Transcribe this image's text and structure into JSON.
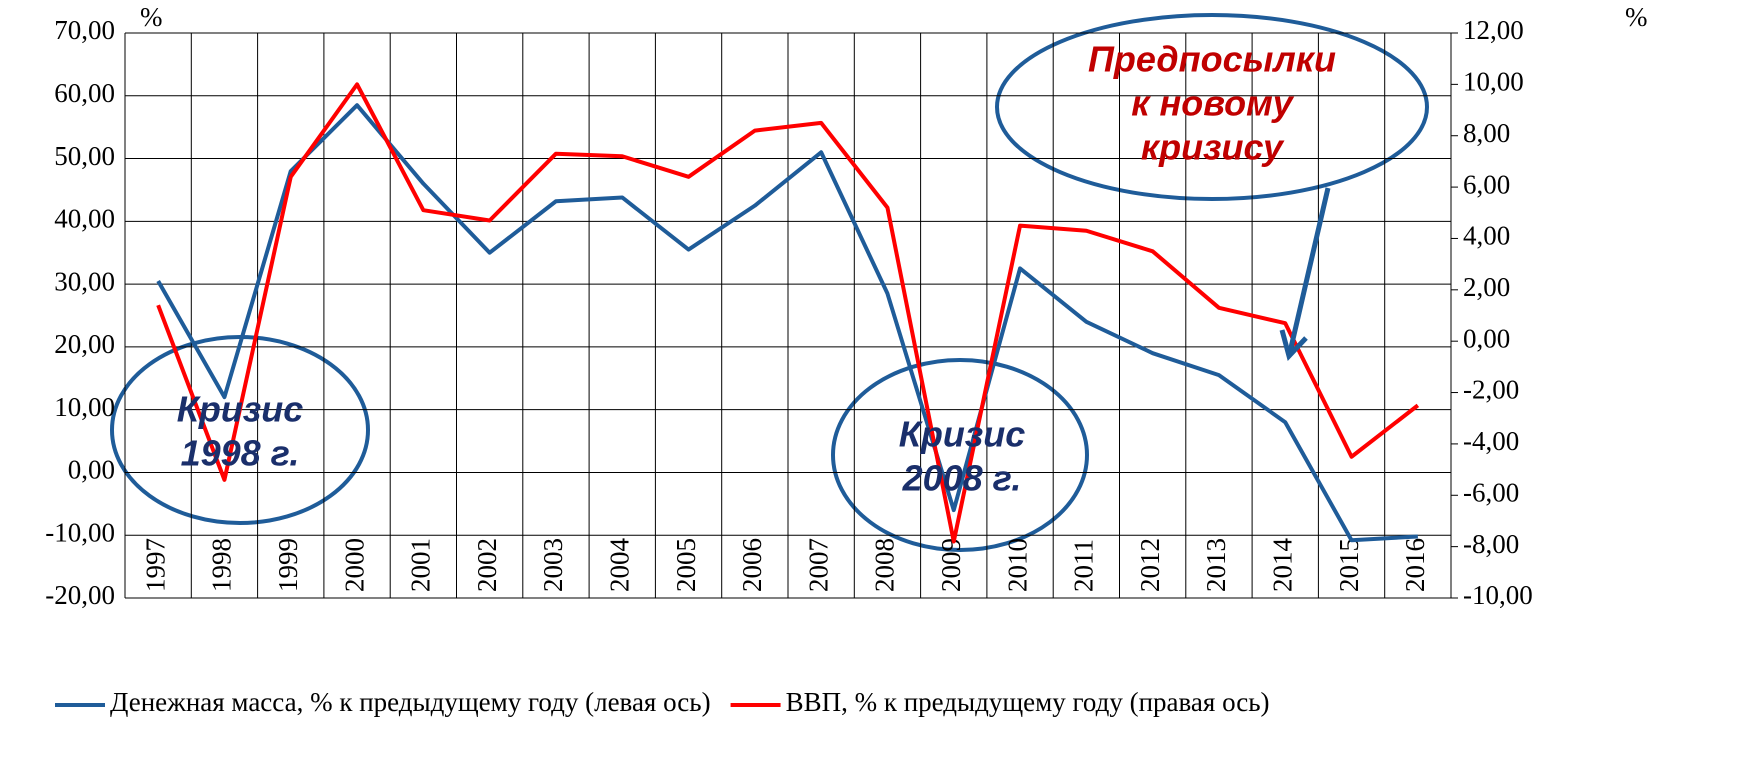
{
  "chart_data": {
    "type": "line",
    "categories": [
      "1997",
      "1998",
      "1999",
      "2000",
      "2001",
      "2002",
      "2003",
      "2004",
      "2005",
      "2006",
      "2007",
      "2008",
      "2009",
      "2010",
      "2011",
      "2012",
      "2013",
      "2014",
      "2015",
      "2016"
    ],
    "series": [
      {
        "name": "Денежная масса, % к предыдущему году (левая ось)",
        "color": "#1f5c99",
        "axis": "y",
        "values": [
          30.5,
          12,
          48,
          58.5,
          46,
          35,
          43.2,
          43.8,
          35.5,
          42.5,
          51,
          28.5,
          -6,
          32.5,
          24,
          19,
          15.5,
          8,
          -10.8,
          -10.2
        ]
      },
      {
        "name": "ВВП, % к предыдущему году (правая ось)",
        "color": "#ff0000",
        "axis": "y2",
        "values": [
          1.4,
          -5.4,
          6.4,
          10.0,
          5.1,
          4.7,
          7.3,
          7.2,
          6.4,
          8.2,
          8.5,
          5.2,
          -7.8,
          4.5,
          4.3,
          3.5,
          1.3,
          0.7,
          -4.5,
          -2.5
        ]
      }
    ],
    "y_unit": "%",
    "y2_unit": "%",
    "ylim": [
      -20,
      70
    ],
    "yticks": [
      {
        "value": -20,
        "label": "-20,00"
      },
      {
        "value": -10,
        "label": "-10,00"
      },
      {
        "value": 0,
        "label": "0,00"
      },
      {
        "value": 10,
        "label": "10,00"
      },
      {
        "value": 20,
        "label": "20,00"
      },
      {
        "value": 30,
        "label": "30,00"
      },
      {
        "value": 40,
        "label": "40,00"
      },
      {
        "value": 50,
        "label": "50,00"
      },
      {
        "value": 60,
        "label": "60,00"
      },
      {
        "value": 70,
        "label": "70,00"
      }
    ],
    "y2lim": [
      -10,
      12
    ],
    "y2ticks": [
      {
        "value": -10,
        "label": "-10,00"
      },
      {
        "value": -8,
        "label": "-8,00"
      },
      {
        "value": -6,
        "label": "-6,00"
      },
      {
        "value": -4,
        "label": "-4,00"
      },
      {
        "value": -2,
        "label": "-2,00"
      },
      {
        "value": 0,
        "label": "0,00"
      },
      {
        "value": 2,
        "label": "2,00"
      },
      {
        "value": 4,
        "label": "4,00"
      },
      {
        "value": 6,
        "label": "6,00"
      },
      {
        "value": 8,
        "label": "8,00"
      },
      {
        "value": 10,
        "label": "10,00"
      },
      {
        "value": 12,
        "label": "12,00"
      }
    ],
    "grid": true,
    "legend": "bottom",
    "annotations": [
      {
        "lines": [
          "Кризис",
          "1998 г."
        ],
        "color": "#1a2f6b"
      },
      {
        "lines": [
          "Кризис",
          "2008 г."
        ],
        "color": "#1a2f6b"
      },
      {
        "lines": [
          "Предпосылки",
          "к новому",
          "кризису"
        ],
        "color": "#c00000"
      }
    ]
  }
}
